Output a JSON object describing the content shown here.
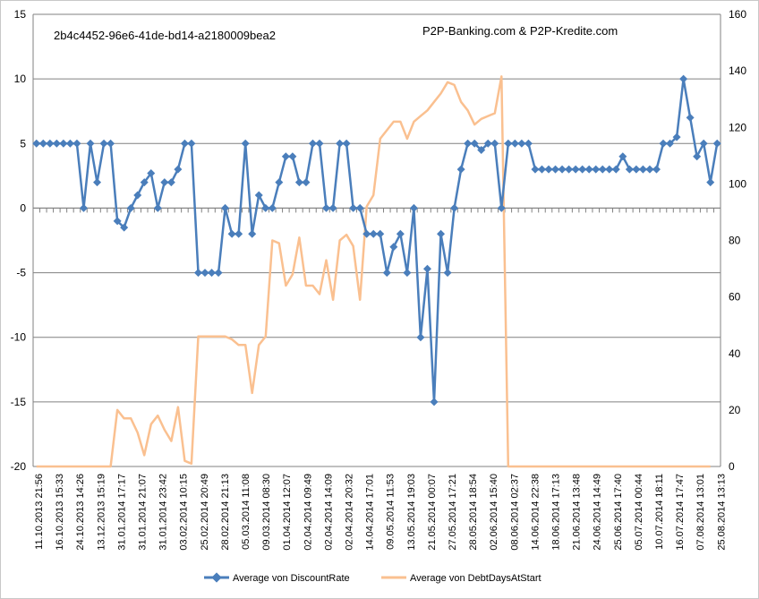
{
  "chart_data": {
    "type": "line",
    "annotations": {
      "id_text": "2b4c4452-96e6-41de-bd14-a2180009bea2",
      "source_text": "P2P-Banking.com & P2P-Kredite.com"
    },
    "y_left": {
      "min": -20,
      "max": 15,
      "step": 5,
      "ticks": [
        "-20",
        "-15",
        "-10",
        "-5",
        "0",
        "5",
        "10",
        "15"
      ]
    },
    "y_right": {
      "min": 0,
      "max": 160,
      "step": 20,
      "ticks": [
        "0",
        "20",
        "40",
        "60",
        "80",
        "100",
        "120",
        "140",
        "160"
      ]
    },
    "x_tick_labels": [
      "11.10.2013 21:56",
      "16.10.2013 15:33",
      "24.10.2013 14:26",
      "13.12.2013 15:19",
      "31.01.2014 17:17",
      "31.01.2014 21:07",
      "31.01.2014 23:42",
      "03.02.2014 10:15",
      "25.02.2014 20:49",
      "28.02.2014 21:13",
      "05.03.2014 11:08",
      "09.03.2014 08:30",
      "01.04.2014 12:07",
      "02.04.2014 09:49",
      "02.04.2014 14:09",
      "02.04.2014 20:32",
      "14.04.2014 17:01",
      "09.05.2014 11:53",
      "13.05.2014 19:03",
      "21.05.2014 00:07",
      "27.05.2014 17:21",
      "28.05.2014 18:54",
      "02.06.2014 15:40",
      "08.06.2014 02:37",
      "14.06.2014 22:38",
      "18.06.2014 17:13",
      "21.06.2014 13:48",
      "24.06.2014 14:49",
      "25.06.2014 17:40",
      "05.07.2014 00:44",
      "10.07.2014 18:11",
      "16.07.2014 17:47",
      "07.08.2014 13:01",
      "25.08.2014 13:13"
    ],
    "legend_position": "bottom",
    "series": [
      {
        "name": "Average von DiscountRate",
        "axis": "left",
        "color": "#4a7ebb",
        "values": [
          5,
          5,
          5,
          5,
          5,
          5,
          5,
          0,
          5,
          2,
          5,
          5,
          -1,
          -1.5,
          0,
          1,
          2,
          2.7,
          0,
          2,
          2,
          3,
          5,
          5,
          -5,
          -5,
          -5,
          -5,
          0,
          -2,
          -2,
          5,
          -2,
          1,
          0,
          0,
          2,
          4,
          4,
          2,
          2,
          5,
          5,
          0,
          0,
          5,
          5,
          0,
          0,
          -2,
          -2,
          -2,
          -5,
          -3,
          -2,
          -5,
          0,
          -10,
          -4.7,
          -15,
          -2,
          -5,
          0,
          3,
          5,
          5,
          4.5,
          5,
          5,
          0,
          5,
          5,
          5,
          5,
          3,
          3,
          3,
          3,
          3,
          3,
          3,
          3,
          3,
          3,
          3,
          3,
          3,
          4,
          3,
          3,
          3,
          3,
          3,
          5,
          5,
          5.5,
          10,
          7,
          4,
          5,
          2,
          5
        ]
      },
      {
        "name": "Average von DebtDaysAtStart",
        "axis": "right",
        "color": "#fac090",
        "values": [
          0,
          0,
          0,
          0,
          0,
          0,
          0,
          0,
          0,
          0,
          0,
          0,
          20,
          17,
          17,
          12,
          4,
          15,
          18,
          13,
          9,
          21,
          2,
          1,
          46,
          46,
          46,
          46,
          46,
          45,
          43,
          43,
          26,
          43,
          46,
          80,
          79,
          64,
          68,
          81,
          64,
          64,
          61,
          73,
          59,
          80,
          82,
          78,
          59,
          92,
          96,
          116,
          119,
          122,
          122,
          116,
          122,
          124,
          126,
          129,
          132,
          136,
          135,
          129,
          126,
          121,
          123,
          124,
          125,
          138,
          0,
          0,
          0,
          0,
          0,
          0,
          0,
          0,
          0,
          0,
          0,
          0,
          0,
          0,
          0,
          0,
          0,
          0,
          0,
          0,
          0,
          0,
          0,
          0,
          0,
          0,
          0,
          0,
          0,
          0,
          0
        ]
      }
    ]
  }
}
